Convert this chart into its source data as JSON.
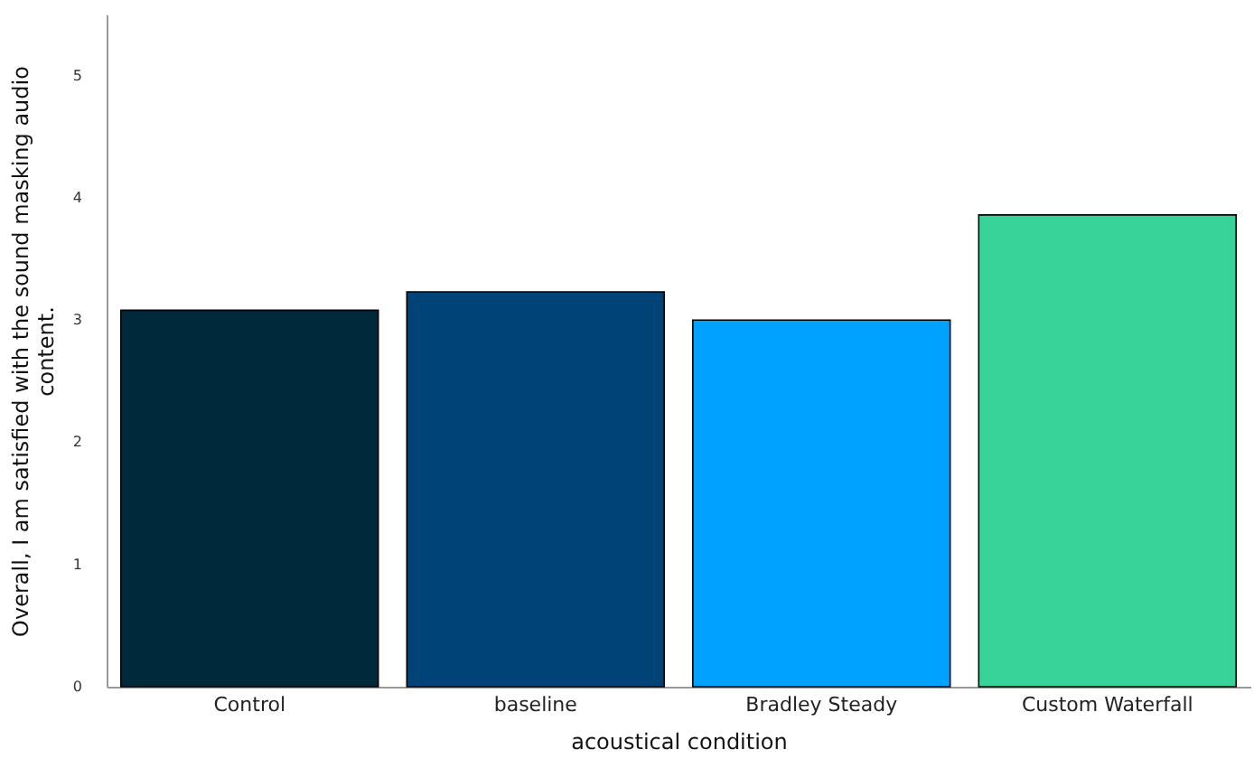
{
  "chart_data": {
    "type": "bar",
    "xlabel": "acoustical condition",
    "ylabel": "Overall, I am satisfied with the sound masking audio content.",
    "categories": [
      "Control",
      "baseline",
      "Bradley Steady",
      "Custom Waterfall"
    ],
    "values": [
      3.08,
      3.23,
      3.0,
      3.86
    ],
    "colors": [
      "#002a3b",
      "#004477",
      "#00a2ff",
      "#38d399"
    ],
    "ylim": [
      0,
      5.5
    ],
    "yticks": [
      0,
      1,
      2,
      3,
      4,
      5
    ],
    "grid": false
  }
}
